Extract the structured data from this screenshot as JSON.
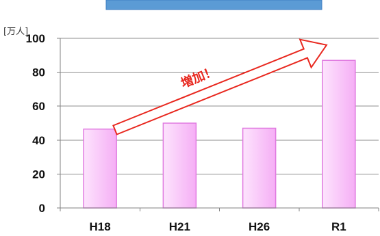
{
  "chart_data": {
    "type": "bar",
    "categories": [
      "H18",
      "H21",
      "H26",
      "R1"
    ],
    "values": [
      46.5,
      50,
      47,
      87
    ],
    "ylabel": "[万人]",
    "xlabel": "",
    "ylim": [
      0,
      100
    ],
    "yticks": [
      0,
      20,
      40,
      60,
      80,
      100
    ],
    "grid": true,
    "legend": "none",
    "annotation": "増加！"
  },
  "colors": {
    "banner": "#5b9bd5",
    "banner_border": "#3f7fc3",
    "bar_fill_light": "#fde4fd",
    "bar_fill_dark": "#f5aef5",
    "bar_stroke": "#e07ae0",
    "grid": "#8c8c8c",
    "axis": "#808080",
    "arrow_stroke": "#e8271e",
    "arrow_fill": "#ffffff",
    "annotation_text": "#e8271e"
  }
}
